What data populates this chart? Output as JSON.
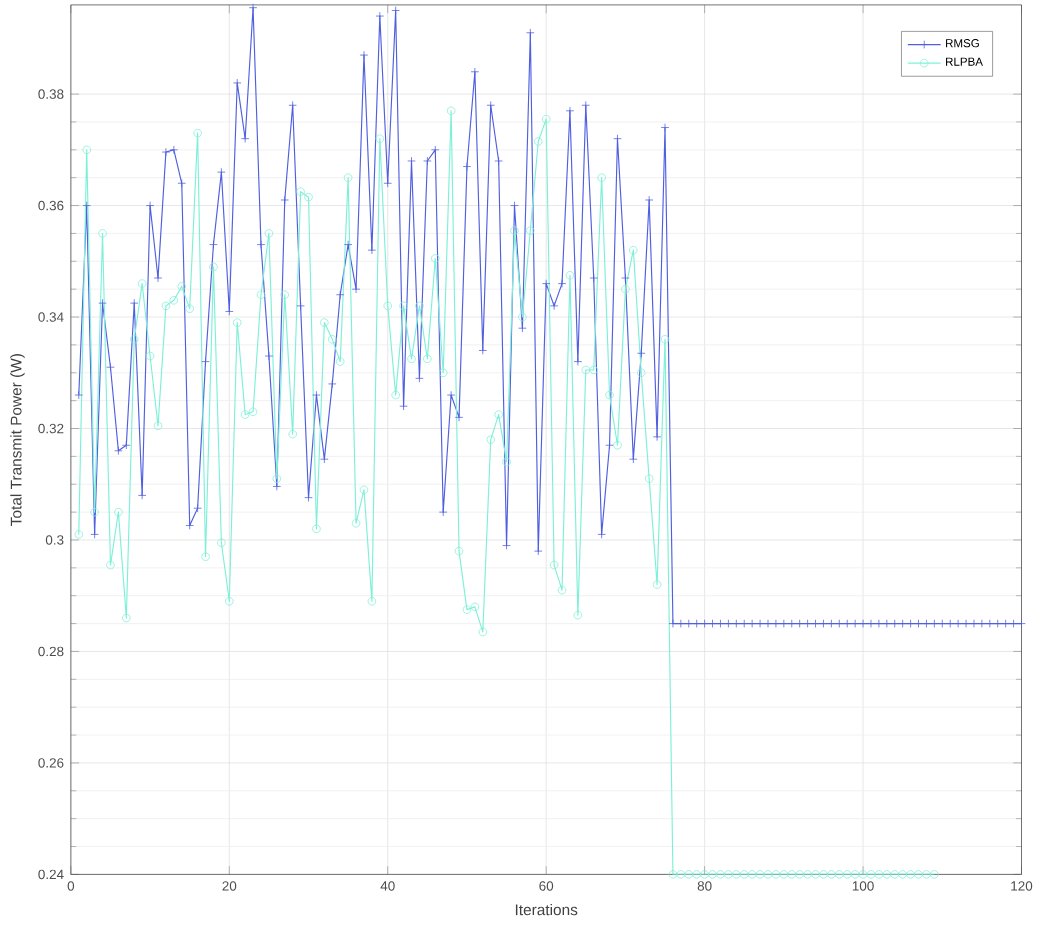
{
  "chart_data": {
    "type": "line",
    "xlabel": "Iterations",
    "ylabel": "Total Transmit Power (W)",
    "x": [
      1,
      2,
      3,
      4,
      5,
      6,
      7,
      8,
      9,
      10,
      11,
      12,
      13,
      14,
      15,
      16,
      17,
      18,
      19,
      20,
      21,
      22,
      23,
      24,
      25,
      26,
      27,
      28,
      29,
      30,
      31,
      32,
      33,
      34,
      35,
      36,
      37,
      38,
      39,
      40,
      41,
      42,
      43,
      44,
      45,
      46,
      47,
      48,
      49,
      50,
      51,
      52,
      53,
      54,
      55,
      56,
      57,
      58,
      59,
      60,
      61,
      62,
      63,
      64,
      65,
      66,
      67,
      68,
      69,
      70,
      71,
      72,
      73,
      74,
      75,
      76,
      77,
      78,
      79,
      80,
      81,
      82,
      83,
      84,
      85,
      86,
      87,
      88,
      89,
      90,
      91,
      92,
      93,
      94,
      95,
      96,
      97,
      98,
      99,
      100,
      101,
      102,
      103,
      104,
      105,
      106,
      107,
      108,
      109,
      110,
      111,
      112,
      113,
      114,
      115,
      116,
      117,
      118,
      119,
      120
    ],
    "xlim": [
      0,
      120
    ],
    "xticks": [
      0,
      20,
      40,
      60,
      80,
      100,
      120
    ],
    "ylim": [
      0.24,
      0.396
    ],
    "yticks": [
      0.24,
      0.26,
      0.28,
      0.3,
      0.32,
      0.34,
      0.36,
      0.38
    ],
    "grid": true,
    "legend": "top right",
    "series": [
      {
        "name": "RMSG",
        "color": "#4f5fe0",
        "marker": "cross",
        "values": [
          0.326,
          0.36,
          0.301,
          0.3425,
          0.331,
          0.316,
          0.317,
          0.3425,
          0.308,
          0.36,
          0.347,
          0.3696,
          0.37,
          0.364,
          0.3026,
          0.3057,
          0.332,
          0.353,
          0.366,
          0.341,
          0.382,
          0.372,
          0.3955,
          0.353,
          0.333,
          0.3096,
          0.361,
          0.378,
          0.342,
          0.3076,
          0.326,
          0.3145,
          0.328,
          0.344,
          0.353,
          0.345,
          0.387,
          0.352,
          0.394,
          0.364,
          0.395,
          0.324,
          0.368,
          0.329,
          0.368,
          0.37,
          0.305,
          0.326,
          0.322,
          0.367,
          0.384,
          0.334,
          0.378,
          0.368,
          0.299,
          0.36,
          0.338,
          0.391,
          0.298,
          0.346,
          0.342,
          0.346,
          0.377,
          0.332,
          0.378,
          0.347,
          0.301,
          0.317,
          0.372,
          0.347,
          0.3145,
          0.3335,
          0.361,
          0.3185,
          0.374,
          0.285,
          0.285,
          0.285,
          0.285,
          0.285,
          0.285,
          0.285,
          0.285,
          0.285,
          0.285,
          0.285,
          0.285,
          0.285,
          0.285,
          0.285,
          0.285,
          0.285,
          0.285,
          0.285,
          0.285,
          0.285,
          0.285,
          0.285,
          0.285,
          0.285,
          0.285,
          0.285,
          0.285,
          0.285,
          0.285,
          0.285,
          0.285,
          0.285,
          0.285,
          0.285,
          0.285,
          0.285,
          0.285,
          0.285,
          0.285,
          0.285,
          0.285,
          0.285,
          0.285,
          0.285
        ]
      },
      {
        "name": "RLPBA",
        "color": "#7ff0d8",
        "marker": "circle",
        "values": [
          0.301,
          0.37,
          0.305,
          0.355,
          0.2955,
          0.305,
          0.286,
          0.336,
          0.346,
          0.333,
          0.3205,
          0.342,
          0.343,
          0.3455,
          0.3415,
          0.373,
          0.297,
          0.349,
          0.2995,
          0.289,
          0.339,
          0.3225,
          0.323,
          0.344,
          0.355,
          0.311,
          0.344,
          0.319,
          0.3625,
          0.3615,
          0.302,
          0.339,
          0.336,
          0.332,
          0.365,
          0.303,
          0.309,
          0.289,
          0.372,
          0.342,
          0.326,
          0.342,
          0.3325,
          0.342,
          0.3325,
          0.3505,
          0.33,
          0.377,
          0.298,
          0.2875,
          0.288,
          0.2835,
          0.318,
          0.3225,
          0.314,
          0.3555,
          0.34,
          0.3555,
          0.3715,
          0.3755,
          0.2955,
          0.291,
          0.3475,
          0.2865,
          0.3305,
          0.3305,
          0.365,
          0.326,
          0.317,
          0.345,
          0.352,
          0.33,
          0.311,
          0.292,
          0.336,
          0.24,
          0.24,
          0.24,
          0.24,
          0.24,
          0.24,
          0.24,
          0.24,
          0.24,
          0.24,
          0.24,
          0.24,
          0.24,
          0.24,
          0.24,
          0.24,
          0.24,
          0.24,
          0.24,
          0.24,
          0.24,
          0.24,
          0.24,
          0.24,
          0.24,
          0.24,
          0.24,
          0.24,
          0.24,
          0.24,
          0.24,
          0.24,
          0.24,
          0.24,
          null,
          null,
          null,
          null,
          null,
          null,
          null,
          null,
          null,
          null,
          null
        ]
      }
    ]
  }
}
